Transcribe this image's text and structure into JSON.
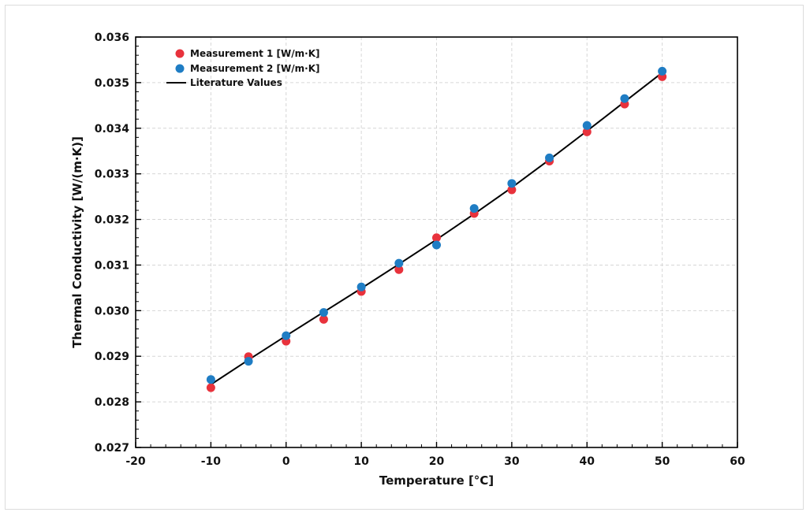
{
  "chart_data": {
    "type": "scatter",
    "xlabel": "Temperature [°C]",
    "ylabel": "Thermal Conductivity [W/(m·K)]",
    "xlim": [
      -20,
      60
    ],
    "ylim": [
      0.027,
      0.036
    ],
    "x_ticks": [
      -20,
      -10,
      0,
      10,
      20,
      30,
      40,
      50,
      60
    ],
    "x_tick_labels": [
      "-20",
      "-10",
      "0",
      "10",
      "20",
      "30",
      "40",
      "50",
      "60"
    ],
    "y_ticks": [
      0.027,
      0.028,
      0.029,
      0.03,
      0.031,
      0.032,
      0.033,
      0.034,
      0.035,
      0.036
    ],
    "y_tick_labels": [
      "0.027",
      "0.028",
      "0.029",
      "0.030",
      "0.031",
      "0.032",
      "0.033",
      "0.034",
      "0.035",
      "0.036"
    ],
    "grid": true,
    "legend_position": "top-left",
    "series": [
      {
        "name": "Measurement 1 [W/m·K]",
        "kind": "scatter",
        "color": "#e8323c",
        "x": [
          -10,
          -5,
          0,
          5,
          10,
          15,
          20,
          25,
          30,
          35,
          40,
          45,
          50
        ],
        "y": [
          0.02831,
          0.02899,
          0.02933,
          0.02981,
          0.03042,
          0.0309,
          0.0316,
          0.03213,
          0.03265,
          0.03328,
          0.03392,
          0.03453,
          0.03513
        ]
      },
      {
        "name": "Measurement 2 [W/m·K]",
        "kind": "scatter",
        "color": "#1f7dc4",
        "x": [
          -10,
          -5,
          0,
          5,
          10,
          15,
          20,
          25,
          30,
          35,
          40,
          45,
          50
        ],
        "y": [
          0.02849,
          0.02889,
          0.02945,
          0.02996,
          0.03052,
          0.03104,
          0.03144,
          0.03224,
          0.03279,
          0.03335,
          0.03406,
          0.03465,
          0.03525
        ]
      },
      {
        "name": "Literature Values",
        "kind": "line",
        "color": "#000000",
        "x": [
          -10,
          -5,
          0,
          5,
          10,
          15,
          20,
          25,
          30,
          35,
          40,
          45,
          50
        ],
        "y": [
          0.02838,
          0.02892,
          0.02945,
          0.02997,
          0.03049,
          0.03102,
          0.03156,
          0.03212,
          0.0327,
          0.03331,
          0.03394,
          0.03458,
          0.03522
        ]
      }
    ]
  }
}
